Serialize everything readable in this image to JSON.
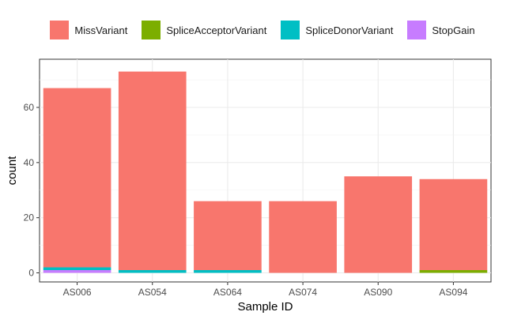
{
  "chart_data": {
    "type": "bar",
    "stacked": true,
    "categories": [
      "AS006",
      "AS054",
      "AS064",
      "AS074",
      "AS090",
      "AS094"
    ],
    "series": [
      {
        "name": "MissVariant",
        "color": "#F8766D",
        "values": [
          65,
          72,
          25,
          26,
          35,
          33
        ]
      },
      {
        "name": "SpliceAcceptorVariant",
        "color": "#7CAE00",
        "values": [
          0,
          0,
          0,
          0,
          0,
          1
        ]
      },
      {
        "name": "SpliceDonorVariant",
        "color": "#00BFC4",
        "values": [
          1,
          1,
          1,
          0,
          0,
          0
        ]
      },
      {
        "name": "StopGain",
        "color": "#C77CFF",
        "values": [
          1,
          0,
          0,
          0,
          0,
          0
        ]
      }
    ],
    "xlabel": "Sample ID",
    "ylabel": "count",
    "ylim": [
      0,
      75
    ],
    "yticks": [
      0,
      20,
      40,
      60
    ],
    "grid": true,
    "legend_position": "top"
  }
}
